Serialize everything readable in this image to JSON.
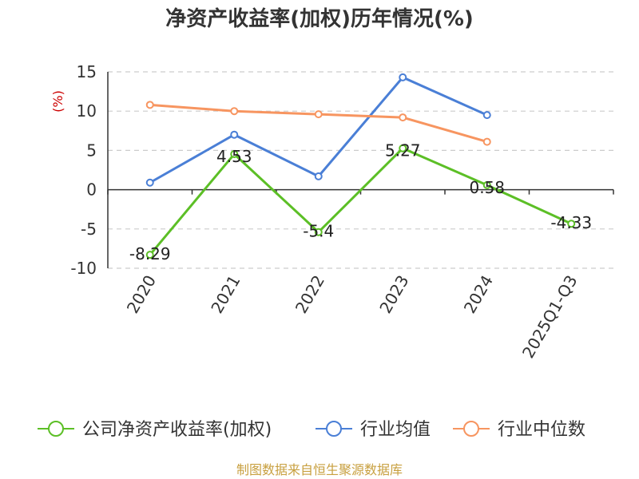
{
  "chart_data": {
    "type": "line",
    "title": "净资产收益率(加权)历年情况(%)",
    "ylabel": "(%)",
    "xlabel": "",
    "categories": [
      "2020",
      "2021",
      "2022",
      "2023",
      "2024",
      "2025Q1-Q3"
    ],
    "ylim": [
      -10,
      15
    ],
    "yticks": [
      15,
      10,
      5,
      0,
      -5,
      -10
    ],
    "grid": true,
    "legend_position": "bottom",
    "series": [
      {
        "name": "公司净资产收益率(加权)",
        "color": "#5cbf26",
        "values": [
          -8.29,
          4.53,
          -5.4,
          5.27,
          0.58,
          -4.33
        ],
        "labels": [
          "-8.29",
          "4.53",
          "-5.4",
          "5.27",
          "0.58",
          "-4.33"
        ]
      },
      {
        "name": "行业均值",
        "color": "#4a7fd6",
        "values": [
          0.9,
          7.0,
          1.7,
          14.3,
          9.5,
          null
        ]
      },
      {
        "name": "行业中位数",
        "color": "#f79560",
        "values": [
          10.8,
          10.0,
          9.6,
          9.2,
          6.1,
          null
        ]
      }
    ]
  },
  "source": "制图数据来自恒生聚源数据库"
}
